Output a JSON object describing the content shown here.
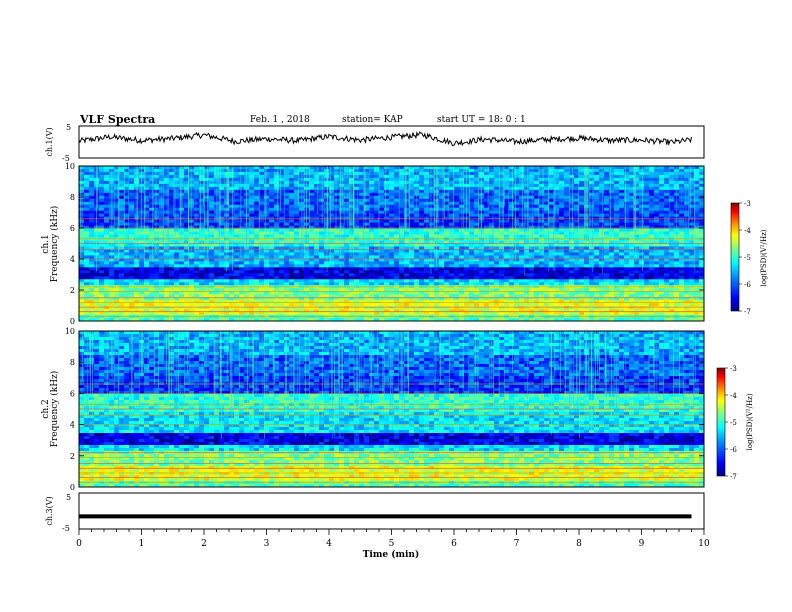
{
  "header": {
    "title": "VLF Spectra",
    "date": "Feb. 1 , 2018",
    "station": "station= KAP",
    "start": "start UT = 18: 0 : 1"
  },
  "colors": {
    "colormap": [
      "#000080",
      "#0000ff",
      "#0080ff",
      "#00ffff",
      "#80ff80",
      "#ffff00",
      "#ff8000",
      "#ff0000",
      "#800000"
    ],
    "trace": "#000000"
  },
  "chart_data": [
    {
      "type": "line",
      "id": "ch1-waveform",
      "ylabel": "ch.1(V)",
      "ylim": [
        -5,
        5
      ],
      "yticks": [
        "5",
        "-5"
      ],
      "x": [
        0,
        0.5,
        1,
        1.5,
        2,
        2.5,
        3,
        3.5,
        4,
        4.5,
        5,
        5.5,
        6,
        6.5,
        7,
        7.5,
        8,
        8.5,
        9,
        9.5,
        9.8
      ],
      "y": [
        0.3,
        1.6,
        0.5,
        1.1,
        2.2,
        0.2,
        1.0,
        0.4,
        1.7,
        0.6,
        1.5,
        2.3,
        -0.4,
        0.9,
        0.1,
        0.8,
        1.2,
        0.5,
        0.6,
        -0.1,
        0.7
      ]
    },
    {
      "type": "heatmap",
      "id": "ch1-spectrogram",
      "ylabel": "ch.1\nFrequency (kHz)",
      "ylim": [
        0,
        10
      ],
      "yticks": [
        "0",
        "2",
        "4",
        "6",
        "8",
        "10"
      ],
      "colorbar": {
        "label": "log(PSD)(V²/Hz)",
        "range": [
          -7,
          -3
        ],
        "ticks": [
          "-3",
          "-4",
          "-5",
          "-6",
          "-7"
        ]
      }
    },
    {
      "type": "heatmap",
      "id": "ch2-spectrogram",
      "ylabel": "ch.2\nFrequency (kHz)",
      "ylim": [
        0,
        10
      ],
      "yticks": [
        "0",
        "2",
        "4",
        "6",
        "8",
        "10"
      ],
      "colorbar": {
        "label": "log(PSD)(V²/Hz)",
        "range": [
          -7,
          -3
        ],
        "ticks": [
          "-3",
          "-4",
          "-5",
          "-6",
          "-7"
        ]
      }
    },
    {
      "type": "line",
      "id": "ch3-waveform",
      "ylabel": "ch.3(V)",
      "ylim": [
        -5,
        5
      ],
      "yticks": [
        "5",
        "-5"
      ],
      "x": [
        0,
        9.8
      ],
      "y": [
        -1.5,
        -1.5
      ]
    }
  ],
  "xaxis": {
    "label": "Time (min)",
    "range": [
      0,
      10
    ],
    "ticks": [
      "0",
      "1",
      "2",
      "3",
      "4",
      "5",
      "6",
      "7",
      "8",
      "9",
      "10"
    ]
  }
}
